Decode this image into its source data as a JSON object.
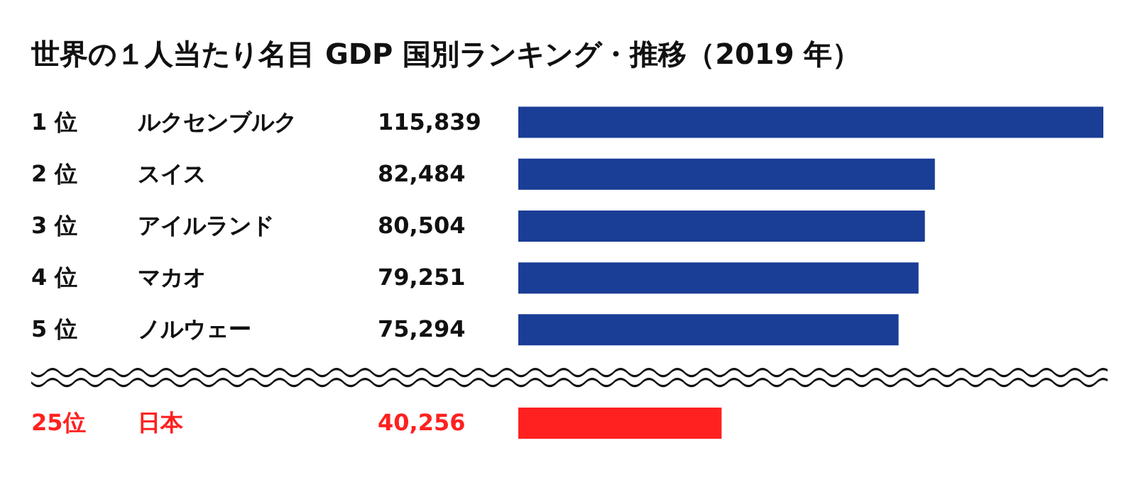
{
  "chart_data": {
    "type": "bar",
    "orientation": "horizontal",
    "title": "世界の１人当たり名目 GDP 国別ランキング・推移（2019 年）",
    "categories": [
      "ルクセンブルク",
      "スイス",
      "アイルランド",
      "マカオ",
      "ノルウェー",
      "日本"
    ],
    "series": [
      {
        "color": "#1a3d96",
        "values": [
          115839,
          82484,
          80504,
          79251,
          75294,
          null
        ],
        "value_labels": [
          "115,839",
          "82,484",
          "80,504",
          "79,251",
          "75,294",
          null
        ]
      },
      {
        "color": "#ff2020",
        "values": [
          null,
          null,
          null,
          null,
          null,
          40256
        ],
        "value_labels": [
          null,
          null,
          null,
          null,
          null,
          "40,256"
        ]
      }
    ],
    "annotations": [
      "1 位",
      "2 位",
      "3 位",
      "4 位",
      "5 位",
      "25位"
    ]
  }
}
